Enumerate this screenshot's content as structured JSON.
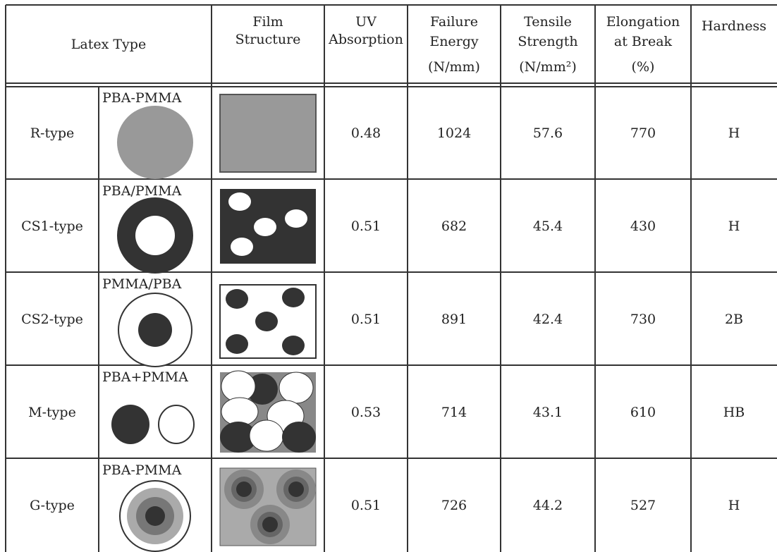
{
  "table": {
    "header": {
      "latex_type": "Latex Type",
      "film_structure": [
        "Film",
        "Structure"
      ],
      "uv_absorption": [
        "UV",
        "Absorption"
      ],
      "failure_energy": [
        "Failure",
        "Energy",
        "(N/mm)"
      ],
      "tensile_strength": [
        "Tensile",
        "Strength",
        "(N/mm²)"
      ],
      "elongation": [
        "Elongation",
        "at Break",
        "(%)"
      ],
      "hardness": "Hardness"
    },
    "rows": [
      [
        "R-type",
        "PBA-PMMA",
        0.48,
        1024,
        57.6,
        770,
        "H"
      ],
      [
        "CS1-type",
        "PBA/PMMA",
        0.51,
        682,
        45.4,
        430,
        "H"
      ],
      [
        "CS2-type",
        "PMMA/PBA",
        0.51,
        891,
        42.4,
        730,
        "2B"
      ],
      [
        "M-type",
        "PBA+PMMA",
        0.53,
        714,
        43.1,
        610,
        "HB"
      ],
      [
        "G-type",
        "PBA-PMMA",
        0.51,
        726,
        44.2,
        527,
        "H"
      ]
    ]
  }
}
